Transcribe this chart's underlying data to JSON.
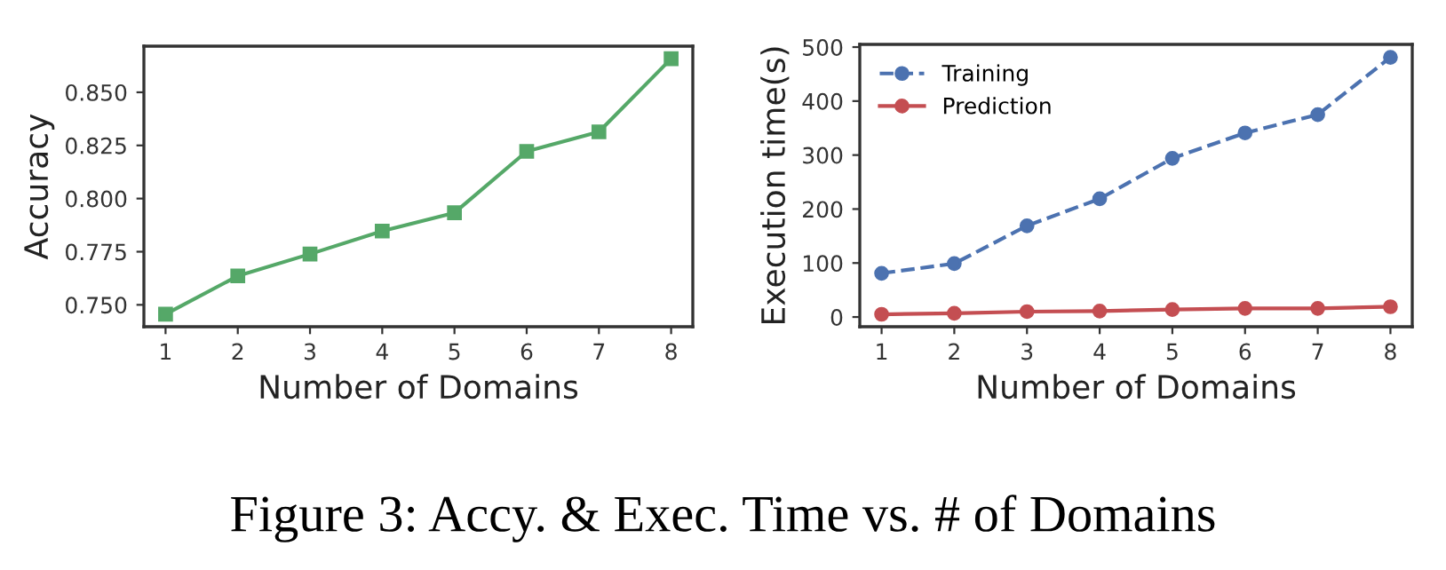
{
  "chart_data": [
    {
      "type": "line",
      "xlabel": "Number of Domains",
      "ylabel": "Accuracy",
      "x": [
        1,
        2,
        3,
        4,
        5,
        6,
        7,
        8
      ],
      "series": [
        {
          "color": "#55a868",
          "values": [
            0.7456,
            0.7636,
            0.7739,
            0.7847,
            0.7933,
            0.8222,
            0.8314,
            0.8658
          ],
          "marker": "square",
          "line_style": "solid"
        }
      ],
      "xlim": [
        0.7,
        8.3
      ],
      "xticks": [
        1,
        2,
        3,
        4,
        5,
        6,
        7,
        8
      ],
      "ylim": [
        0.7397,
        0.8717
      ],
      "yticks": [
        {
          "value": 0.75,
          "label": "0.750"
        },
        {
          "value": 0.775,
          "label": "0.775"
        },
        {
          "value": 0.8,
          "label": "0.800"
        },
        {
          "value": 0.825,
          "label": "0.825"
        },
        {
          "value": 0.85,
          "label": "0.850"
        }
      ],
      "grid": false,
      "legend": false,
      "annotations": [
        "Figure 3: Accy. & Exec. Time vs. # of Domains"
      ]
    },
    {
      "type": "line",
      "xlabel": "Number of Domains",
      "ylabel": "Execution time(s)",
      "x": [
        1,
        2,
        3,
        4,
        5,
        6,
        7,
        8
      ],
      "series": [
        {
          "name": "Training",
          "color": "#4c72b0",
          "values": [
            81,
            99,
            169,
            219,
            294,
            341,
            375,
            481
          ],
          "marker": "circle",
          "line_style": "dashed"
        },
        {
          "name": "Prediction",
          "color": "#c44e52",
          "values": [
            5,
            7,
            10,
            11,
            14,
            16,
            16,
            19
          ],
          "marker": "circle",
          "line_style": "solid"
        }
      ],
      "xlim": [
        0.7,
        8.3
      ],
      "xticks": [
        1,
        2,
        3,
        4,
        5,
        6,
        7,
        8
      ],
      "ylim": [
        -18,
        505
      ],
      "yticks": [
        0,
        100,
        200,
        300,
        400,
        500
      ],
      "grid": false,
      "legend": "top left"
    }
  ]
}
